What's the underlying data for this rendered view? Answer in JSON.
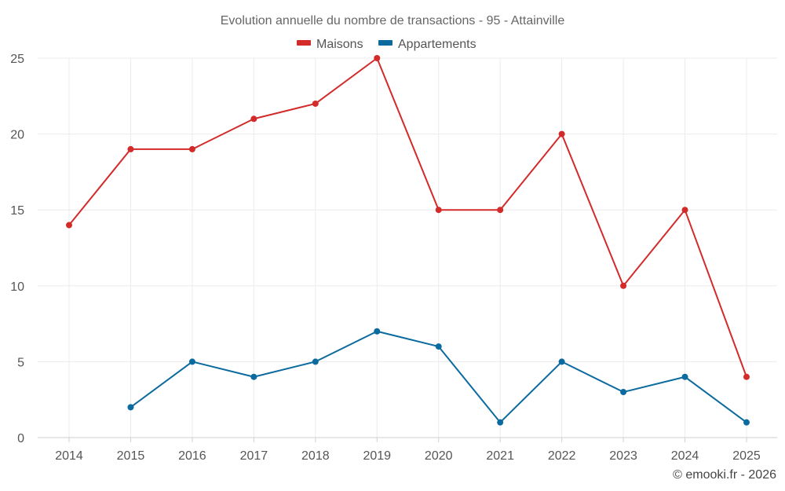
{
  "chart_data": {
    "type": "line",
    "title": "Evolution annuelle du nombre de transactions - 95 - Attainville",
    "categories": [
      "2014",
      "2015",
      "2016",
      "2017",
      "2018",
      "2019",
      "2020",
      "2021",
      "2022",
      "2023",
      "2024",
      "2025"
    ],
    "series": [
      {
        "name": "Maisons",
        "color": "#d32a2a",
        "values": [
          14,
          19,
          19,
          21,
          22,
          25,
          15,
          15,
          20,
          10,
          15,
          4
        ]
      },
      {
        "name": "Appartements",
        "color": "#0b6a9e",
        "values": [
          null,
          2,
          5,
          4,
          5,
          7,
          6,
          1,
          5,
          3,
          4,
          1
        ]
      }
    ],
    "ylim": [
      0,
      25
    ],
    "yticks": [
      0,
      5,
      10,
      15,
      20,
      25
    ],
    "xlabel": "",
    "ylabel": "",
    "grid": true,
    "legend_position": "top-center",
    "credit": "© emooki.fr - 2026"
  }
}
